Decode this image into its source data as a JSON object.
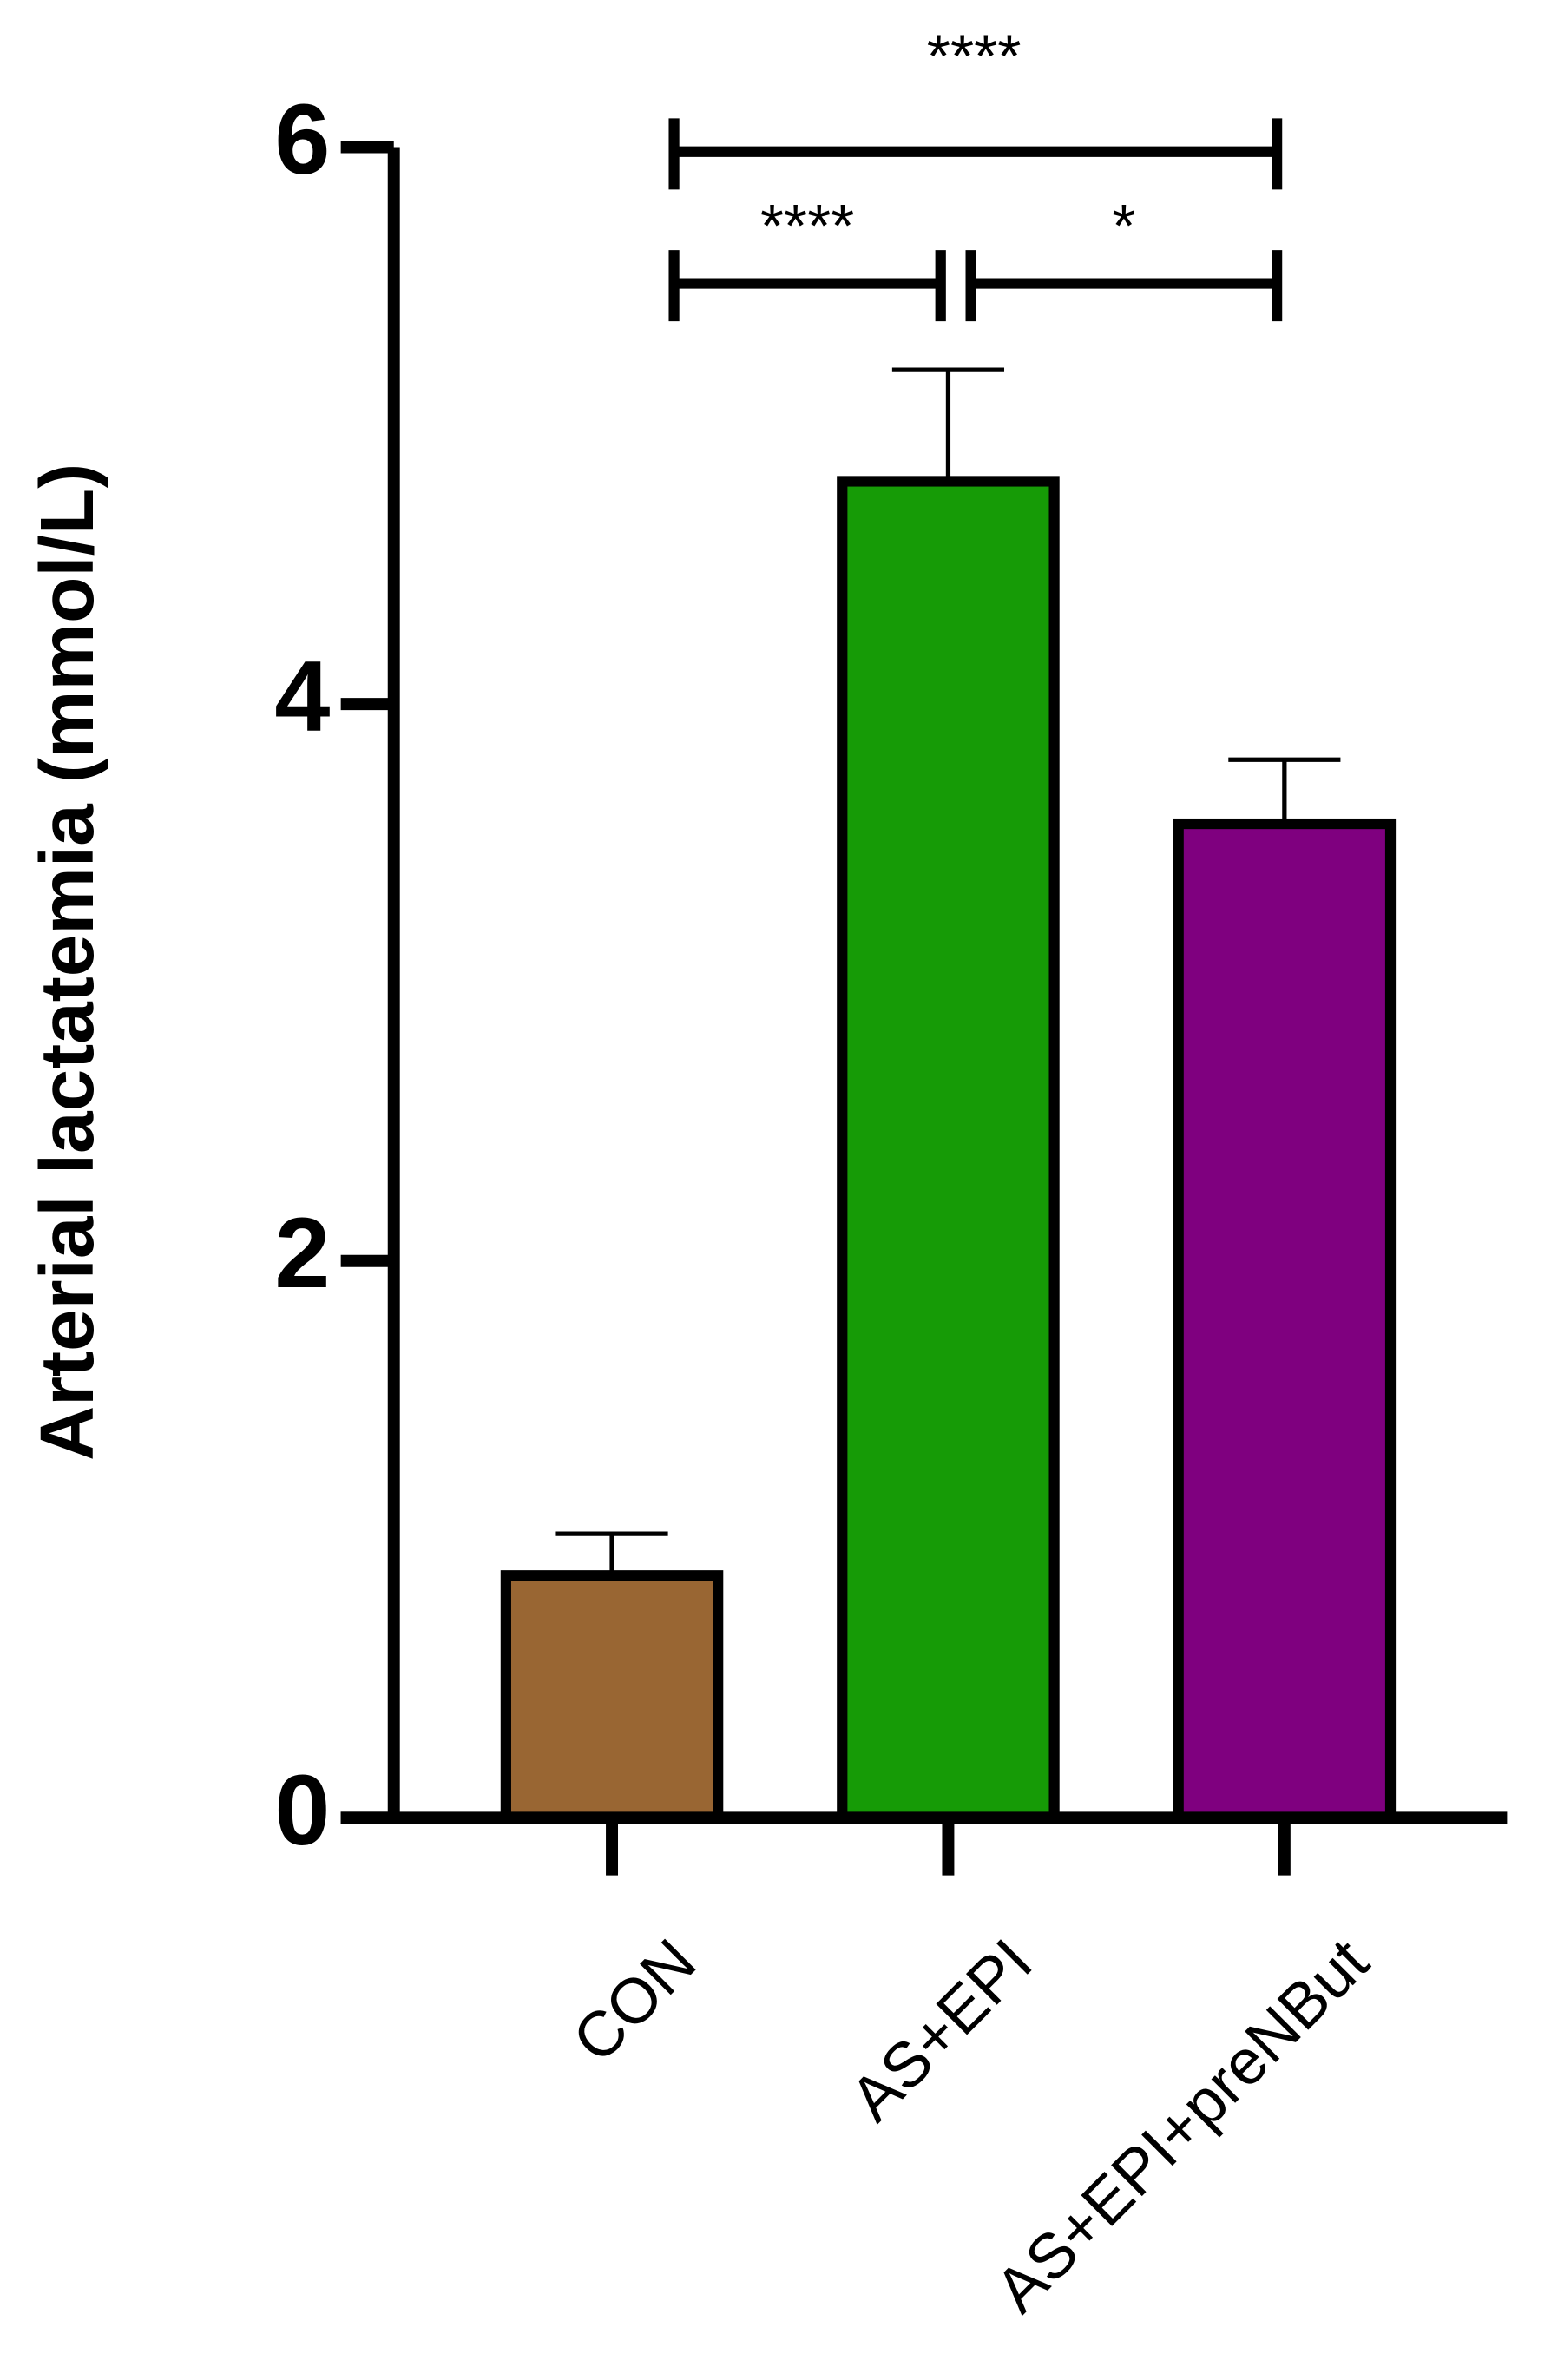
{
  "chart_data": {
    "type": "bar",
    "y_label": "Arterial lactatemia (mmol/L)",
    "categories": [
      "CON",
      "AS+EPI",
      "AS+EPI+preNBut"
    ],
    "values": [
      0.87,
      4.8,
      3.57
    ],
    "errors": [
      0.15,
      0.4,
      0.23
    ],
    "colors": [
      "#996633",
      "#169b06",
      "#7f007f"
    ],
    "ylim": [
      0,
      6
    ],
    "yticks": [
      0,
      2,
      4,
      6
    ],
    "annotations": [
      {
        "label": "****"
      },
      {
        "label": "****"
      },
      {
        "label": "*"
      }
    ]
  }
}
